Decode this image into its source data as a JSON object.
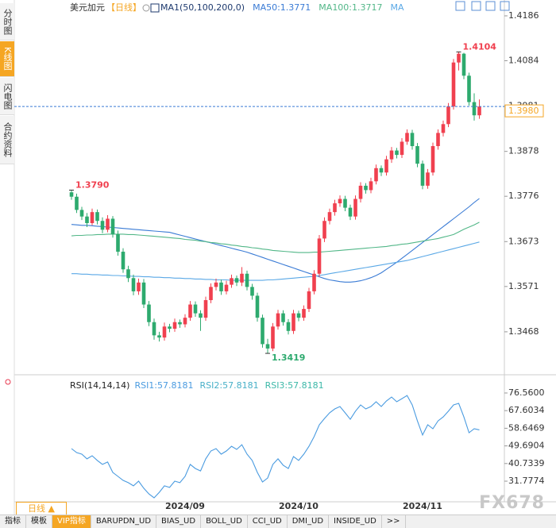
{
  "ui": {
    "sidebar": [
      "分时图",
      "K线图",
      "闪电图",
      "合约资料"
    ],
    "period_button": "日线 ▲",
    "tabs": [
      "指标",
      "模板",
      "VIP指标",
      "BARUPDN_UD",
      "BIAS_UD",
      "BOLL_UD",
      "CCI_UD",
      "DMI_UD",
      "INSIDE_UD",
      ">>"
    ],
    "watermark": "FX678"
  },
  "chart_data": [
    {
      "type": "candlestick",
      "title": "美元加元",
      "period": "【日线】",
      "indicator": "MA1(50,100,200,0)",
      "up_color": "#f0404f",
      "down_color": "#2daa6e",
      "categories": [
        null,
        null,
        null,
        null,
        null,
        null,
        null,
        null,
        null,
        null,
        null,
        null,
        null,
        null,
        null,
        null,
        null,
        null,
        null,
        null,
        null,
        null,
        "2024/09",
        null,
        null,
        null,
        null,
        null,
        null,
        null,
        null,
        null,
        null,
        null,
        null,
        null,
        null,
        null,
        null,
        null,
        null,
        null,
        null,
        null,
        "2024/10",
        null,
        null,
        null,
        null,
        null,
        null,
        null,
        null,
        null,
        null,
        null,
        null,
        null,
        null,
        null,
        null,
        null,
        null,
        null,
        null,
        null,
        null,
        null,
        "2024/11",
        null,
        null,
        null,
        null,
        null,
        null,
        null,
        null,
        null,
        null,
        null
      ],
      "candles": [
        [
          1.3785,
          1.379,
          1.3768,
          1.3775
        ],
        [
          1.3775,
          1.3782,
          1.3738,
          1.3745
        ],
        [
          1.3745,
          1.3752,
          1.3722,
          1.373
        ],
        [
          1.373,
          1.3738,
          1.3706,
          1.3715
        ],
        [
          1.3715,
          1.3748,
          1.371,
          1.374
        ],
        [
          1.374,
          1.3746,
          1.3712,
          1.372
        ],
        [
          1.372,
          1.3728,
          1.3692,
          1.37
        ],
        [
          1.37,
          1.3733,
          1.3694,
          1.3725
        ],
        [
          1.3725,
          1.3731,
          1.3682,
          1.369
        ],
        [
          1.369,
          1.3698,
          1.3641,
          1.365
        ],
        [
          1.365,
          1.3658,
          1.3602,
          1.361
        ],
        [
          1.361,
          1.3618,
          1.3581,
          1.359
        ],
        [
          1.359,
          1.3598,
          1.3551,
          1.356
        ],
        [
          1.356,
          1.3589,
          1.3552,
          1.358
        ],
        [
          1.358,
          1.3588,
          1.3522,
          1.353
        ],
        [
          1.353,
          1.3538,
          1.3481,
          1.349
        ],
        [
          1.349,
          1.3498,
          1.345,
          1.346
        ],
        [
          1.346,
          1.3468,
          1.3446,
          1.3455
        ],
        [
          1.3455,
          1.3489,
          1.3448,
          1.348
        ],
        [
          1.348,
          1.3486,
          1.3467,
          1.3475
        ],
        [
          1.3475,
          1.3498,
          1.3468,
          1.349
        ],
        [
          1.349,
          1.3496,
          1.3477,
          1.3485
        ],
        [
          1.3485,
          1.3508,
          1.3478,
          1.35
        ],
        [
          1.35,
          1.3538,
          1.3493,
          1.353
        ],
        [
          1.353,
          1.3537,
          1.3502,
          1.351
        ],
        [
          1.351,
          1.3517,
          1.347,
          1.35
        ],
        [
          1.35,
          1.3548,
          1.3493,
          1.354
        ],
        [
          1.354,
          1.3578,
          1.3533,
          1.357
        ],
        [
          1.357,
          1.3589,
          1.3562,
          1.358
        ],
        [
          1.358,
          1.3587,
          1.3552,
          1.356
        ],
        [
          1.356,
          1.3584,
          1.3553,
          1.3575
        ],
        [
          1.3575,
          1.3598,
          1.3568,
          1.359
        ],
        [
          1.359,
          1.3596,
          1.3572,
          1.358
        ],
        [
          1.358,
          1.3615,
          1.3572,
          1.36
        ],
        [
          1.36,
          1.3607,
          1.3562,
          1.357
        ],
        [
          1.357,
          1.3577,
          1.3541,
          1.355
        ],
        [
          1.355,
          1.3557,
          1.3491,
          1.35
        ],
        [
          1.35,
          1.3507,
          1.3432,
          1.344
        ],
        [
          1.344,
          1.3452,
          1.3419,
          1.343
        ],
        [
          1.343,
          1.3488,
          1.3424,
          1.348
        ],
        [
          1.348,
          1.3518,
          1.3473,
          1.351
        ],
        [
          1.351,
          1.3517,
          1.3482,
          1.349
        ],
        [
          1.349,
          1.3497,
          1.3462,
          1.347
        ],
        [
          1.347,
          1.3518,
          1.3463,
          1.351
        ],
        [
          1.351,
          1.3516,
          1.3492,
          1.35
        ],
        [
          1.35,
          1.3528,
          1.3493,
          1.352
        ],
        [
          1.352,
          1.3568,
          1.3513,
          1.356
        ],
        [
          1.356,
          1.3608,
          1.3553,
          1.36
        ],
        [
          1.36,
          1.3688,
          1.3593,
          1.368
        ],
        [
          1.368,
          1.3728,
          1.3672,
          1.372
        ],
        [
          1.372,
          1.3748,
          1.3712,
          1.374
        ],
        [
          1.374,
          1.3768,
          1.3732,
          1.376
        ],
        [
          1.376,
          1.3778,
          1.3752,
          1.377
        ],
        [
          1.377,
          1.3777,
          1.3742,
          1.375
        ],
        [
          1.375,
          1.3757,
          1.3722,
          1.373
        ],
        [
          1.373,
          1.3778,
          1.3723,
          1.377
        ],
        [
          1.377,
          1.3808,
          1.3762,
          1.38
        ],
        [
          1.38,
          1.3806,
          1.3782,
          1.379
        ],
        [
          1.379,
          1.3818,
          1.3783,
          1.381
        ],
        [
          1.381,
          1.3848,
          1.3803,
          1.384
        ],
        [
          1.384,
          1.3846,
          1.3822,
          1.383
        ],
        [
          1.383,
          1.3868,
          1.3823,
          1.386
        ],
        [
          1.386,
          1.3888,
          1.3852,
          1.388
        ],
        [
          1.388,
          1.3886,
          1.3862,
          1.387
        ],
        [
          1.387,
          1.3908,
          1.3863,
          1.39
        ],
        [
          1.39,
          1.3928,
          1.3893,
          1.392
        ],
        [
          1.392,
          1.3927,
          1.3882,
          1.389
        ],
        [
          1.389,
          1.3897,
          1.3842,
          1.385
        ],
        [
          1.385,
          1.3857,
          1.3792,
          1.38
        ],
        [
          1.38,
          1.3838,
          1.3793,
          1.383
        ],
        [
          1.383,
          1.3898,
          1.3823,
          1.389
        ],
        [
          1.389,
          1.3928,
          1.3882,
          1.392
        ],
        [
          1.392,
          1.3948,
          1.3912,
          1.394
        ],
        [
          1.394,
          1.3988,
          1.3933,
          1.398
        ],
        [
          1.398,
          1.4088,
          1.3973,
          1.408
        ],
        [
          1.408,
          1.4104,
          1.4062,
          1.41
        ],
        [
          1.41,
          1.4102,
          1.4042,
          1.405
        ],
        [
          1.405,
          1.4057,
          1.3982,
          1.399
        ],
        [
          1.399,
          1.401,
          1.3948,
          1.396
        ],
        [
          1.396,
          1.3996,
          1.3952,
          1.398
        ]
      ],
      "series": [
        {
          "name": "MA50:1.3771",
          "color": "#3a7bd5",
          "values": [
            1.3712,
            1.3711,
            1.371,
            1.371,
            1.3709,
            1.3708,
            1.3707,
            1.3706,
            1.3705,
            1.3704,
            1.3703,
            1.3702,
            1.3701,
            1.37,
            1.3699,
            1.3698,
            1.3697,
            1.3696,
            1.3695,
            1.3694,
            1.3691,
            1.3688,
            1.3685,
            1.3682,
            1.3679,
            1.3676,
            1.3673,
            1.367,
            1.3667,
            1.3664,
            1.3661,
            1.3658,
            1.3655,
            1.3652,
            1.3649,
            1.3645,
            1.3641,
            1.3637,
            1.3633,
            1.3629,
            1.3625,
            1.3621,
            1.3617,
            1.3613,
            1.3609,
            1.3605,
            1.3601,
            1.3597,
            1.3593,
            1.3589,
            1.3586,
            1.3584,
            1.3582,
            1.3581,
            1.3581,
            1.3582,
            1.3584,
            1.3587,
            1.3591,
            1.3596,
            1.3602,
            1.361,
            1.3618,
            1.3626,
            1.3635,
            1.3644,
            1.3653,
            1.3662,
            1.3671,
            1.368,
            1.3689,
            1.3698,
            1.3707,
            1.3716,
            1.3725,
            1.3734,
            1.3743,
            1.3752,
            1.3762,
            1.3771
          ]
        },
        {
          "name": "MA100:1.3717",
          "color": "#52b788",
          "values": [
            1.3686,
            1.3687,
            1.3687,
            1.3688,
            1.3688,
            1.3689,
            1.3689,
            1.369,
            1.369,
            1.369,
            1.369,
            1.3689,
            1.3689,
            1.3688,
            1.3687,
            1.3686,
            1.3685,
            1.3684,
            1.3683,
            1.3682,
            1.3681,
            1.368,
            1.3678,
            1.3677,
            1.3676,
            1.3674,
            1.3673,
            1.3671,
            1.367,
            1.3668,
            1.3667,
            1.3665,
            1.3664,
            1.3662,
            1.3661,
            1.3659,
            1.3658,
            1.3656,
            1.3655,
            1.3653,
            1.3652,
            1.3651,
            1.365,
            1.3649,
            1.3648,
            1.3648,
            1.3648,
            1.3649,
            1.3649,
            1.365,
            1.3651,
            1.3652,
            1.3653,
            1.3654,
            1.3655,
            1.3656,
            1.3657,
            1.3658,
            1.3659,
            1.366,
            1.3661,
            1.3662,
            1.3664,
            1.3665,
            1.3667,
            1.3668,
            1.367,
            1.3672,
            1.3674,
            1.3676,
            1.3678,
            1.368,
            1.3683,
            1.3686,
            1.3689,
            1.3695,
            1.3701,
            1.3706,
            1.3711,
            1.3717
          ]
        },
        {
          "name": "MA",
          "color": "#5aa8e6",
          "values": [
            1.36,
            1.36,
            1.3599,
            1.3599,
            1.3598,
            1.3598,
            1.3597,
            1.3597,
            1.3596,
            1.3596,
            1.3595,
            1.3595,
            1.3594,
            1.3594,
            1.3593,
            1.3593,
            1.3592,
            1.3592,
            1.3591,
            1.3591,
            1.359,
            1.359,
            1.3589,
            1.3589,
            1.3588,
            1.3588,
            1.3587,
            1.3587,
            1.3586,
            1.3586,
            1.3586,
            1.3585,
            1.3585,
            1.3585,
            1.3585,
            1.3585,
            1.3585,
            1.3585,
            1.3586,
            1.3586,
            1.3587,
            1.3588,
            1.3589,
            1.359,
            1.3591,
            1.3592,
            1.3593,
            1.3594,
            1.3596,
            1.3598,
            1.36,
            1.3602,
            1.3604,
            1.3606,
            1.3608,
            1.361,
            1.3612,
            1.3614,
            1.3616,
            1.3618,
            1.362,
            1.3622,
            1.3624,
            1.3626,
            1.3628,
            1.363,
            1.3633,
            1.3636,
            1.3639,
            1.3642,
            1.3645,
            1.3648,
            1.3651,
            1.3654,
            1.3657,
            1.366,
            1.3663,
            1.3666,
            1.3669,
            1.3672
          ]
        }
      ],
      "ylim": [
        1.3374,
        1.4213
      ],
      "yticks": [
        1.4186,
        1.4084,
        1.3981,
        1.3878,
        1.3776,
        1.3673,
        1.3571,
        1.3468
      ],
      "annotations": [
        {
          "value": 1.4104,
          "label": "1.4104"
        },
        {
          "value": 1.379,
          "label": "1.3790"
        },
        {
          "value": 1.3419,
          "label": "1.3419"
        }
      ],
      "last_price": {
        "value": 1.398,
        "label": "1.3980"
      },
      "last_price_color": "#f5a623"
    },
    {
      "type": "line",
      "indicator": "RSI(14,14,14)",
      "series": [
        {
          "name": "RSI1:57.8181",
          "color": "#4a9be0",
          "values": [
            48.3,
            46.3,
            45.5,
            43.1,
            44.7,
            42.3,
            40.3,
            41.5,
            36.2,
            34.2,
            32.2,
            31.0,
            29.4,
            31.8,
            28.2,
            25.3,
            23.3,
            26.1,
            29.4,
            28.6,
            31.8,
            31.0,
            34.2,
            40.3,
            38.2,
            37.0,
            43.1,
            47.1,
            48.3,
            45.5,
            47.1,
            49.5,
            47.9,
            50.3,
            45.5,
            42.3,
            36.2,
            31.4,
            33.4,
            40.3,
            43.1,
            39.9,
            38.2,
            44.3,
            42.3,
            45.5,
            49.5,
            54.4,
            60.4,
            63.6,
            66.5,
            68.5,
            69.7,
            66.5,
            63.2,
            67.3,
            70.5,
            68.5,
            69.7,
            72.1,
            69.7,
            72.5,
            74.5,
            72.1,
            73.7,
            75.3,
            70.5,
            62.4,
            55.2,
            60.4,
            58.4,
            62.4,
            64.4,
            67.3,
            70.5,
            71.3,
            64.4,
            56.4,
            58.4,
            57.8181
          ]
        }
      ],
      "extra_legend": [
        {
          "name": "RSI2:57.8181",
          "color": "#48b0c8"
        },
        {
          "name": "RSI3:57.8181",
          "color": "#3cb8a8"
        }
      ],
      "ylim": [
        21.3,
        83.4
      ],
      "yticks": [
        {
          "value": 76.56,
          "label": "76.5600"
        },
        67.6034,
        58.6469,
        49.6904,
        40.7339,
        31.7774
      ]
    }
  ]
}
